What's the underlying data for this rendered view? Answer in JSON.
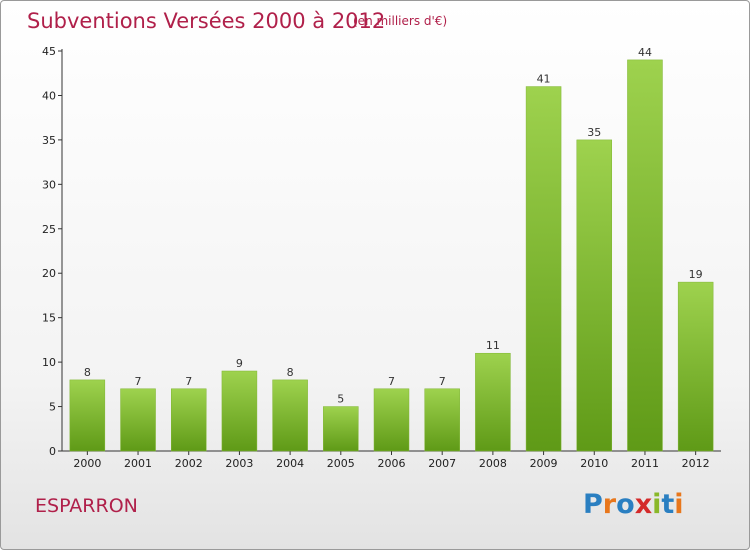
{
  "title": "Subventions Versées 2000 à 2012",
  "subtitle": "(en milliers d'€)",
  "commune": "ESPARRON",
  "logo": {
    "text": "Proxiti",
    "colors": [
      "#2a7fc1",
      "#e8771c",
      "#2a7fc1",
      "#d42a2a",
      "#8ab82a",
      "#2a7fc1",
      "#e8771c"
    ]
  },
  "colors": {
    "title": "#b0204a",
    "bar_top": "#9ed24e",
    "bar_bottom": "#5f9a17"
  },
  "chart_data": {
    "type": "bar",
    "categories": [
      "2000",
      "2001",
      "2002",
      "2003",
      "2004",
      "2005",
      "2006",
      "2007",
      "2008",
      "2009",
      "2010",
      "2011",
      "2012"
    ],
    "values": [
      8,
      7,
      7,
      9,
      8,
      5,
      7,
      7,
      11,
      41,
      35,
      44,
      19
    ],
    "ylim": [
      0,
      45
    ],
    "yticks": [
      0,
      5,
      10,
      15,
      20,
      25,
      30,
      35,
      40,
      45
    ],
    "grid": false,
    "data_labels": true
  }
}
